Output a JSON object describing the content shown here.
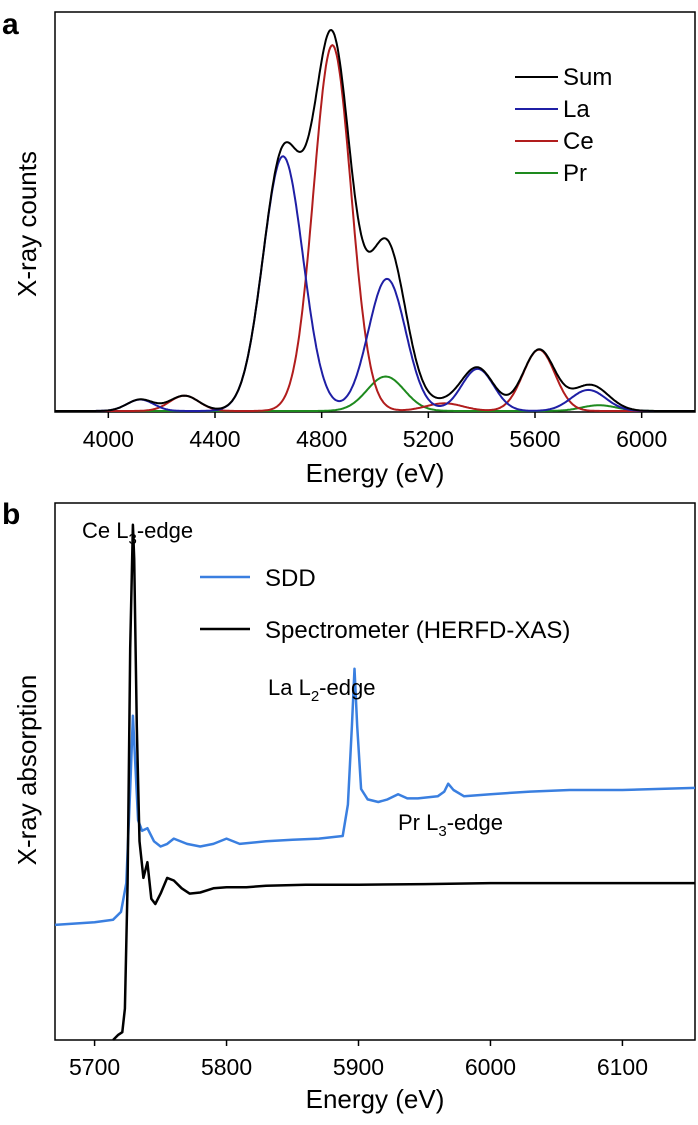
{
  "colors": {
    "Sum": "#000000",
    "La": "#1f1fa5",
    "Ce": "#b11d1d",
    "Pr": "#1e8a1e",
    "SDD": "#3a7fe0",
    "Spectrometer": "#000000"
  },
  "chart_data": [
    {
      "panel": "a",
      "type": "line",
      "xlabel": "Energy (eV)",
      "ylabel": "X-ray counts",
      "xlim": [
        3800,
        6200
      ],
      "ylim": [
        0,
        1.0
      ],
      "xticks": [
        4000,
        4400,
        4800,
        5200,
        5600,
        6000
      ],
      "legend_position": "top-right",
      "grid": false,
      "series": [
        {
          "name": "Sum",
          "color": "#000000"
        },
        {
          "name": "La",
          "color": "#1f1fa5",
          "peaks": [
            {
              "center": 4120,
              "height": 0.03,
              "width": 50
            },
            {
              "center": 4655,
              "height": 0.665,
              "width": 75
            },
            {
              "center": 5045,
              "height": 0.345,
              "width": 70
            },
            {
              "center": 5385,
              "height": 0.11,
              "width": 60
            },
            {
              "center": 5800,
              "height": 0.055,
              "width": 65
            }
          ]
        },
        {
          "name": "Ce",
          "color": "#b11d1d",
          "peaks": [
            {
              "center": 4285,
              "height": 0.04,
              "width": 55
            },
            {
              "center": 4840,
              "height": 0.955,
              "width": 70
            },
            {
              "center": 5260,
              "height": 0.02,
              "width": 70
            },
            {
              "center": 5615,
              "height": 0.16,
              "width": 60
            }
          ]
        },
        {
          "name": "Pr",
          "color": "#1e8a1e",
          "peaks": [
            {
              "center": 5040,
              "height": 0.09,
              "width": 70
            },
            {
              "center": 5840,
              "height": 0.015,
              "width": 65
            }
          ]
        }
      ]
    },
    {
      "panel": "b",
      "type": "line",
      "xlabel": "Energy (eV)",
      "ylabel": "X-ray absorption",
      "xlim": [
        5670,
        6155
      ],
      "ylim": [
        0,
        1.0
      ],
      "xticks": [
        5700,
        5800,
        5900,
        6000,
        6100
      ],
      "legend_position": "top-left",
      "grid": false,
      "annotations": [
        {
          "main": "Ce L",
          "sub": "3",
          "rest": "-edge",
          "x": 5730
        },
        {
          "main": "La L",
          "sub": "2",
          "rest": "-edge",
          "x": 5897
        },
        {
          "main": "Pr L",
          "sub": "3",
          "rest": "-edge",
          "x": 5968
        }
      ],
      "series": [
        {
          "name": "SDD",
          "color": "#3a7fe0",
          "points": [
            [
              5670,
              0.22
            ],
            [
              5700,
              0.225
            ],
            [
              5714,
              0.23
            ],
            [
              5720,
              0.245
            ],
            [
              5724,
              0.3
            ],
            [
              5727,
              0.48
            ],
            [
              5729,
              0.62
            ],
            [
              5731,
              0.52
            ],
            [
              5733,
              0.42
            ],
            [
              5736,
              0.4
            ],
            [
              5740,
              0.405
            ],
            [
              5745,
              0.38
            ],
            [
              5750,
              0.37
            ],
            [
              5755,
              0.375
            ],
            [
              5760,
              0.385
            ],
            [
              5770,
              0.375
            ],
            [
              5780,
              0.37
            ],
            [
              5790,
              0.375
            ],
            [
              5800,
              0.385
            ],
            [
              5810,
              0.375
            ],
            [
              5830,
              0.38
            ],
            [
              5850,
              0.383
            ],
            [
              5870,
              0.385
            ],
            [
              5888,
              0.39
            ],
            [
              5892,
              0.45
            ],
            [
              5895,
              0.6
            ],
            [
              5897,
              0.71
            ],
            [
              5899,
              0.6
            ],
            [
              5902,
              0.48
            ],
            [
              5907,
              0.46
            ],
            [
              5915,
              0.455
            ],
            [
              5922,
              0.46
            ],
            [
              5930,
              0.47
            ],
            [
              5937,
              0.462
            ],
            [
              5945,
              0.462
            ],
            [
              5960,
              0.466
            ],
            [
              5965,
              0.475
            ],
            [
              5968,
              0.49
            ],
            [
              5972,
              0.478
            ],
            [
              5980,
              0.466
            ],
            [
              6000,
              0.47
            ],
            [
              6030,
              0.475
            ],
            [
              6060,
              0.478
            ],
            [
              6100,
              0.478
            ],
            [
              6155,
              0.482
            ]
          ]
        },
        {
          "name": "Spectrometer (HERFD-XAS)",
          "color": "#000000",
          "points": [
            [
              5714,
              0.0
            ],
            [
              5718,
              0.01
            ],
            [
              5721,
              0.015
            ],
            [
              5723,
              0.06
            ],
            [
              5725,
              0.3
            ],
            [
              5727,
              0.75
            ],
            [
              5729,
              0.985
            ],
            [
              5730,
              0.92
            ],
            [
              5732,
              0.6
            ],
            [
              5734,
              0.38
            ],
            [
              5737,
              0.31
            ],
            [
              5740,
              0.34
            ],
            [
              5743,
              0.27
            ],
            [
              5746,
              0.26
            ],
            [
              5750,
              0.28
            ],
            [
              5755,
              0.31
            ],
            [
              5760,
              0.305
            ],
            [
              5766,
              0.29
            ],
            [
              5772,
              0.28
            ],
            [
              5780,
              0.282
            ],
            [
              5790,
              0.29
            ],
            [
              5800,
              0.292
            ],
            [
              5815,
              0.292
            ],
            [
              5830,
              0.295
            ],
            [
              5860,
              0.297
            ],
            [
              5900,
              0.297
            ],
            [
              5950,
              0.298
            ],
            [
              6000,
              0.3
            ],
            [
              6050,
              0.3
            ],
            [
              6100,
              0.3
            ],
            [
              6155,
              0.3
            ]
          ]
        }
      ]
    }
  ]
}
